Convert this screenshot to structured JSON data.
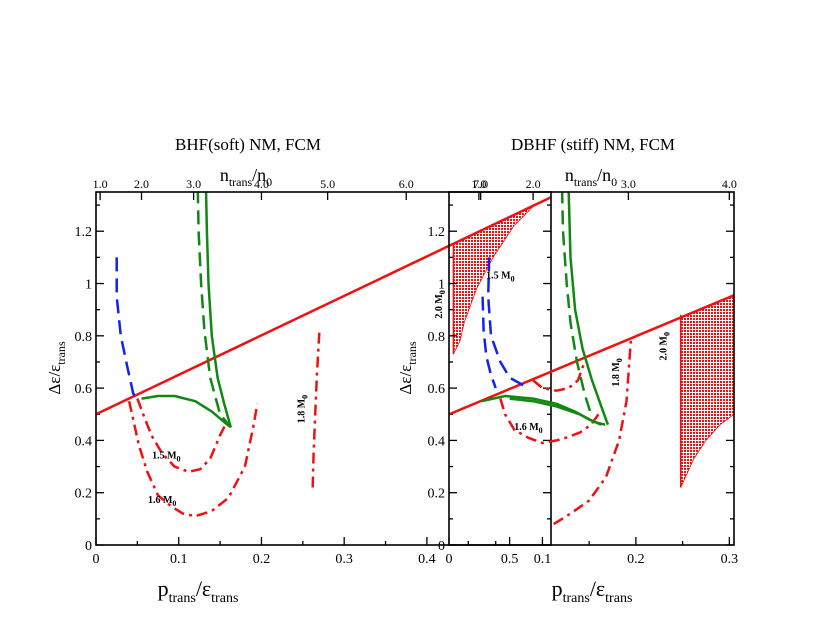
{
  "colors": {
    "red": "#ee1111",
    "green": "#118811",
    "blue": "#1122ee",
    "black": "#000000"
  },
  "chart_data": [
    {
      "type": "line",
      "title": "BHF(soft) NM, FCM",
      "xlabel": {
        "main": "p",
        "main_sub": "trans",
        "slash": "/ε",
        "den_sub": "trans"
      },
      "ylabel": {
        "main": "Δε/ε",
        "sub": "trans"
      },
      "top_label": {
        "main": "n",
        "sub1": "trans",
        "slash": "/n",
        "sub2": "0"
      },
      "xlim": [
        0,
        0.55
      ],
      "ylim": [
        0,
        1.35
      ],
      "x_ticks": [
        0,
        0.1,
        0.2,
        0.3,
        0.4,
        0.5
      ],
      "x_tick_labels": [
        "0",
        "0.1",
        "0.2",
        "0.3",
        "0.4",
        "0.5"
      ],
      "y_ticks": [
        0,
        0.2,
        0.4,
        0.6,
        0.8,
        1.0,
        1.2
      ],
      "y_tick_labels": [
        "0",
        "0.2",
        "0.4",
        "0.6",
        "0.8",
        "1",
        "1.2"
      ],
      "top_ticks": [
        {
          "x": 0.005,
          "label": "1.0"
        },
        {
          "x": 0.055,
          "label": "2.0"
        },
        {
          "x": 0.118,
          "label": "3.0"
        },
        {
          "x": 0.2,
          "label": "4.0"
        },
        {
          "x": 0.28,
          "label": "5.0"
        },
        {
          "x": 0.375,
          "label": "6.0"
        },
        {
          "x": 0.465,
          "label": "7.0"
        }
      ],
      "series": [
        {
          "color": "red",
          "dash": "solid",
          "width": 2.5,
          "points": [
            [
              0,
              0.5
            ],
            [
              0.55,
              1.33
            ]
          ]
        },
        {
          "color": "blue",
          "dash": "long",
          "width": 2.5,
          "points": [
            [
              0.025,
              1.1
            ],
            [
              0.025,
              0.95
            ],
            [
              0.03,
              0.8
            ],
            [
              0.038,
              0.68
            ],
            [
              0.045,
              0.58
            ],
            [
              0.05,
              0.55
            ]
          ]
        },
        {
          "color": "red",
          "dash": "dashdot",
          "width": 2.5,
          "points": [
            [
              0.05,
              0.56
            ],
            [
              0.057,
              0.5
            ],
            [
              0.067,
              0.42
            ],
            [
              0.08,
              0.35
            ],
            [
              0.095,
              0.3
            ],
            [
              0.112,
              0.28
            ],
            [
              0.126,
              0.29
            ],
            [
              0.138,
              0.33
            ],
            [
              0.15,
              0.42
            ],
            [
              0.158,
              0.47
            ]
          ]
        },
        {
          "color": "red",
          "dash": "dashdot",
          "width": 2.5,
          "points": [
            [
              0.04,
              0.55
            ],
            [
              0.045,
              0.48
            ],
            [
              0.052,
              0.38
            ],
            [
              0.062,
              0.28
            ],
            [
              0.075,
              0.19
            ],
            [
              0.09,
              0.15
            ],
            [
              0.105,
              0.12
            ],
            [
              0.12,
              0.11
            ],
            [
              0.14,
              0.13
            ],
            [
              0.16,
              0.18
            ],
            [
              0.18,
              0.3
            ],
            [
              0.19,
              0.45
            ],
            [
              0.195,
              0.54
            ]
          ]
        },
        {
          "color": "red",
          "dash": "dashdot",
          "width": 2.5,
          "points": [
            [
              0.262,
              0.22
            ],
            [
              0.263,
              0.35
            ],
            [
              0.265,
              0.5
            ],
            [
              0.267,
              0.65
            ],
            [
              0.27,
              0.82
            ]
          ]
        },
        {
          "color": "green",
          "dash": "solid",
          "width": 2.5,
          "points": [
            [
              0.055,
              0.56
            ],
            [
              0.075,
              0.57
            ],
            [
              0.095,
              0.57
            ],
            [
              0.12,
              0.55
            ],
            [
              0.14,
              0.51
            ],
            [
              0.155,
              0.47
            ],
            [
              0.163,
              0.45
            ]
          ]
        },
        {
          "color": "green",
          "dash": "solid",
          "width": 2.5,
          "points": [
            [
              0.133,
              1.36
            ],
            [
              0.134,
              1.2
            ],
            [
              0.136,
              1.0
            ],
            [
              0.14,
              0.8
            ],
            [
              0.147,
              0.64
            ],
            [
              0.155,
              0.54
            ],
            [
              0.163,
              0.45
            ]
          ]
        },
        {
          "color": "green",
          "dash": "long",
          "width": 2.5,
          "points": [
            [
              0.123,
              1.36
            ],
            [
              0.124,
              1.2
            ],
            [
              0.127,
              1.0
            ],
            [
              0.131,
              0.82
            ],
            [
              0.138,
              0.64
            ],
            [
              0.15,
              0.5
            ],
            [
              0.163,
              0.45
            ]
          ]
        },
        {
          "color": "red",
          "dash": "solid",
          "width": 1.5,
          "points": [
            [
              0.432,
              0.73
            ],
            [
              0.432,
              1.15
            ]
          ]
        }
      ],
      "filled_regions": [
        {
          "color": "red",
          "points": [
            [
              0.432,
              0.73
            ],
            [
              0.432,
              1.15
            ],
            [
              0.53,
              1.3
            ],
            [
              0.505,
              1.22
            ],
            [
              0.48,
              1.1
            ],
            [
              0.46,
              0.98
            ],
            [
              0.445,
              0.85
            ],
            [
              0.44,
              0.78
            ]
          ]
        }
      ],
      "annotations": [
        {
          "text": "1.5 M",
          "sub": "0",
          "x": 0.085,
          "y": 0.33,
          "rotate": 0
        },
        {
          "text": "1.6 M",
          "sub": "0",
          "x": 0.08,
          "y": 0.16,
          "rotate": 0
        },
        {
          "text": "1.8 M",
          "sub": "0",
          "x": 0.252,
          "y": 0.52,
          "rotate": -90
        },
        {
          "text": "2.0 M",
          "sub": "0",
          "x": 0.418,
          "y": 0.92,
          "rotate": -90
        }
      ]
    },
    {
      "type": "line",
      "title": "DBHF (stiff) NM, FCM",
      "xlabel": {
        "main": "p",
        "main_sub": "trans",
        "slash": "/ε",
        "den_sub": "trans"
      },
      "ylabel": {
        "main": "Δε/ε",
        "sub": "trans"
      },
      "top_label": {
        "main": "n",
        "sub1": "trans",
        "slash": "/n",
        "sub2": "0"
      },
      "xlim": [
        0,
        0.305
      ],
      "ylim": [
        0,
        1.35
      ],
      "x_ticks": [
        0,
        0.1,
        0.2,
        0.3
      ],
      "x_tick_labels": [
        "0",
        "0.1",
        "0.2",
        "0.3"
      ],
      "y_ticks": [
        0,
        0.2,
        0.4,
        0.6,
        0.8,
        1.0,
        1.2
      ],
      "y_tick_labels": [
        "0",
        "0.2",
        "0.4",
        "0.6",
        "0.8",
        "1",
        "1.2"
      ],
      "top_ticks": [
        {
          "x": 0.032,
          "label": "1.0"
        },
        {
          "x": 0.09,
          "label": "2.0"
        },
        {
          "x": 0.192,
          "label": "3.0"
        },
        {
          "x": 0.3,
          "label": "4.0"
        }
      ],
      "series": [
        {
          "color": "red",
          "dash": "solid",
          "width": 2.5,
          "points": [
            [
              0,
              0.5
            ],
            [
              0.305,
              0.955
            ]
          ]
        },
        {
          "color": "blue",
          "dash": "long",
          "width": 2.5,
          "points": [
            [
              0.043,
              1.1
            ],
            [
              0.042,
              0.95
            ],
            [
              0.045,
              0.8
            ],
            [
              0.055,
              0.7
            ],
            [
              0.065,
              0.64
            ],
            [
              0.08,
              0.61
            ]
          ]
        },
        {
          "color": "blue",
          "dash": "long",
          "width": 2.5,
          "points": [
            [
              0.036,
              0.95
            ],
            [
              0.037,
              0.82
            ],
            [
              0.04,
              0.72
            ],
            [
              0.045,
              0.65
            ],
            [
              0.05,
              0.6
            ]
          ]
        },
        {
          "color": "red",
          "dash": "dashdot",
          "width": 2.5,
          "points": [
            [
              0.055,
              0.56
            ],
            [
              0.06,
              0.5
            ],
            [
              0.07,
              0.44
            ],
            [
              0.085,
              0.41
            ],
            [
              0.1,
              0.39
            ],
            [
              0.115,
              0.4
            ],
            [
              0.125,
              0.41
            ],
            [
              0.14,
              0.43
            ],
            [
              0.152,
              0.46
            ],
            [
              0.16,
              0.5
            ]
          ]
        },
        {
          "color": "red",
          "dash": "dashdot",
          "width": 2.5,
          "points": [
            [
              0.09,
              0.63
            ],
            [
              0.1,
              0.6
            ],
            [
              0.115,
              0.59
            ],
            [
              0.128,
              0.6
            ],
            [
              0.138,
              0.63
            ],
            [
              0.145,
              0.7
            ]
          ]
        },
        {
          "color": "red",
          "dash": "dashdot",
          "width": 2.5,
          "points": [
            [
              0.112,
              0.08
            ],
            [
              0.13,
              0.12
            ],
            [
              0.15,
              0.17
            ],
            [
              0.168,
              0.26
            ],
            [
              0.182,
              0.4
            ],
            [
              0.19,
              0.55
            ],
            [
              0.193,
              0.7
            ],
            [
              0.195,
              0.8
            ]
          ]
        },
        {
          "color": "green",
          "dash": "solid",
          "width": 2.5,
          "points": [
            [
              0.035,
              0.55
            ],
            [
              0.06,
              0.57
            ],
            [
              0.09,
              0.56
            ],
            [
              0.115,
              0.54
            ],
            [
              0.135,
              0.51
            ],
            [
              0.15,
              0.48
            ],
            [
              0.163,
              0.46
            ]
          ]
        },
        {
          "color": "green",
          "dash": "solid",
          "width": 2.5,
          "points": [
            [
              0.065,
              0.56
            ],
            [
              0.09,
              0.55
            ],
            [
              0.115,
              0.53
            ],
            [
              0.14,
              0.5
            ],
            [
              0.156,
              0.47
            ],
            [
              0.167,
              0.46
            ]
          ]
        },
        {
          "color": "green",
          "dash": "solid",
          "width": 2.5,
          "points": [
            [
              0.128,
              1.36
            ],
            [
              0.13,
              1.1
            ],
            [
              0.135,
              0.9
            ],
            [
              0.143,
              0.75
            ],
            [
              0.153,
              0.63
            ],
            [
              0.163,
              0.53
            ],
            [
              0.17,
              0.46
            ]
          ]
        },
        {
          "color": "green",
          "dash": "long",
          "width": 2.5,
          "points": [
            [
              0.121,
              1.36
            ],
            [
              0.122,
              1.2
            ],
            [
              0.126,
              1.0
            ],
            [
              0.13,
              0.85
            ],
            [
              0.137,
              0.7
            ],
            [
              0.145,
              0.58
            ],
            [
              0.152,
              0.5
            ]
          ]
        },
        {
          "color": "red",
          "dash": "solid",
          "width": 1.5,
          "points": [
            [
              0.248,
              0.22
            ],
            [
              0.248,
              0.88
            ]
          ]
        }
      ],
      "filled_regions": [
        {
          "color": "red",
          "points": [
            [
              0.248,
              0.22
            ],
            [
              0.248,
              0.87
            ],
            [
              0.305,
              0.955
            ],
            [
              0.305,
              0.5
            ],
            [
              0.29,
              0.46
            ],
            [
              0.275,
              0.4
            ],
            [
              0.262,
              0.33
            ]
          ]
        }
      ],
      "annotations": [
        {
          "text": "1.5 M",
          "sub": "0",
          "x": 0.055,
          "y": 1.02,
          "rotate": 0
        },
        {
          "text": "1.6 M",
          "sub": "0",
          "x": 0.085,
          "y": 0.44,
          "rotate": 0
        },
        {
          "text": "1.8 M",
          "sub": "0",
          "x": 0.182,
          "y": 0.66,
          "rotate": -90
        },
        {
          "text": "2.0 M",
          "sub": "0",
          "x": 0.233,
          "y": 0.76,
          "rotate": -90
        }
      ]
    }
  ]
}
